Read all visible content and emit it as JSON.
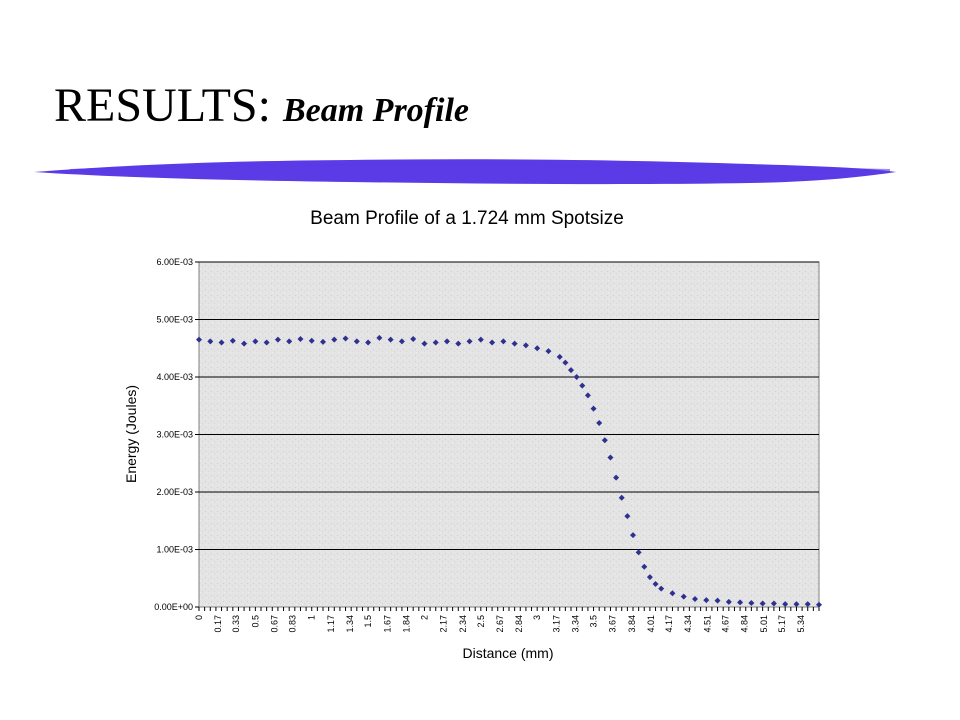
{
  "slide": {
    "title_main": "RESULTS:",
    "title_sub": "Beam Profile",
    "accent_color": "#5a3be6"
  },
  "chart_data": {
    "type": "scatter",
    "title": "Beam Profile of a 1.724 mm Spotsize",
    "xlabel": "Distance (mm)",
    "ylabel": "Energy (Joules)",
    "xlim": [
      0,
      5.5
    ],
    "ylim": [
      0,
      0.006
    ],
    "y_ticks": [
      0,
      0.001,
      0.002,
      0.003,
      0.004,
      0.005,
      0.006
    ],
    "y_tick_labels": [
      "0.00E+00",
      "1.00E-03",
      "2.00E-03",
      "3.00E-03",
      "4.00E-03",
      "5.00E-03",
      "6.00E-03"
    ],
    "x_tick_labels": [
      "0",
      "0.17",
      "0.33",
      "0.5",
      "0.67",
      "0.83",
      "1",
      "1.17",
      "1.34",
      "1.5",
      "1.67",
      "1.84",
      "2",
      "2.17",
      "2.34",
      "2.5",
      "2.67",
      "2.84",
      "3",
      "3.17",
      "3.34",
      "3.5",
      "3.67",
      "3.84",
      "4.01",
      "4.17",
      "4.34",
      "4.51",
      "4.67",
      "4.84",
      "5.01",
      "5.17",
      "5.34"
    ],
    "x_tick_values": [
      0,
      0.17,
      0.33,
      0.5,
      0.67,
      0.83,
      1,
      1.17,
      1.34,
      1.5,
      1.67,
      1.84,
      2,
      2.17,
      2.34,
      2.5,
      2.67,
      2.84,
      3,
      3.17,
      3.34,
      3.5,
      3.67,
      3.84,
      4.01,
      4.17,
      4.34,
      4.51,
      4.67,
      4.84,
      5.01,
      5.17,
      5.34
    ],
    "grid": "horizontal",
    "legend": "none",
    "marker_color": "#2e318f",
    "series": [
      {
        "x": [
          0,
          0.1,
          0.2,
          0.3,
          0.4,
          0.5,
          0.6,
          0.7,
          0.8,
          0.9,
          1.0,
          1.1,
          1.2,
          1.3,
          1.4,
          1.5,
          1.6,
          1.7,
          1.8,
          1.9,
          2.0,
          2.1,
          2.2,
          2.3,
          2.4,
          2.5,
          2.6,
          2.7,
          2.8,
          2.9,
          3.0,
          3.1,
          3.2,
          3.25,
          3.3,
          3.35,
          3.4,
          3.45,
          3.5,
          3.55,
          3.6,
          3.65,
          3.7,
          3.75,
          3.8,
          3.85,
          3.9,
          3.95,
          4.0,
          4.05,
          4.1,
          4.2,
          4.3,
          4.4,
          4.5,
          4.6,
          4.7,
          4.8,
          4.9,
          5.0,
          5.1,
          5.2,
          5.3,
          5.4,
          5.5
        ],
        "y": [
          0.00465,
          0.00462,
          0.0046,
          0.00463,
          0.00458,
          0.00462,
          0.0046,
          0.00465,
          0.00462,
          0.00466,
          0.00463,
          0.00461,
          0.00465,
          0.00467,
          0.00462,
          0.0046,
          0.00468,
          0.00465,
          0.00462,
          0.00466,
          0.00458,
          0.0046,
          0.00462,
          0.00458,
          0.00462,
          0.00465,
          0.0046,
          0.00462,
          0.00458,
          0.00455,
          0.0045,
          0.00445,
          0.00435,
          0.00425,
          0.00412,
          0.004,
          0.00385,
          0.00368,
          0.00345,
          0.0032,
          0.0029,
          0.0026,
          0.00225,
          0.0019,
          0.00158,
          0.00125,
          0.00095,
          0.0007,
          0.00052,
          0.0004,
          0.00032,
          0.00024,
          0.00018,
          0.00014,
          0.00012,
          0.00011,
          9e-05,
          8e-05,
          7e-05,
          6e-05,
          6e-05,
          5e-05,
          5e-05,
          5e-05,
          4e-05
        ]
      }
    ]
  }
}
